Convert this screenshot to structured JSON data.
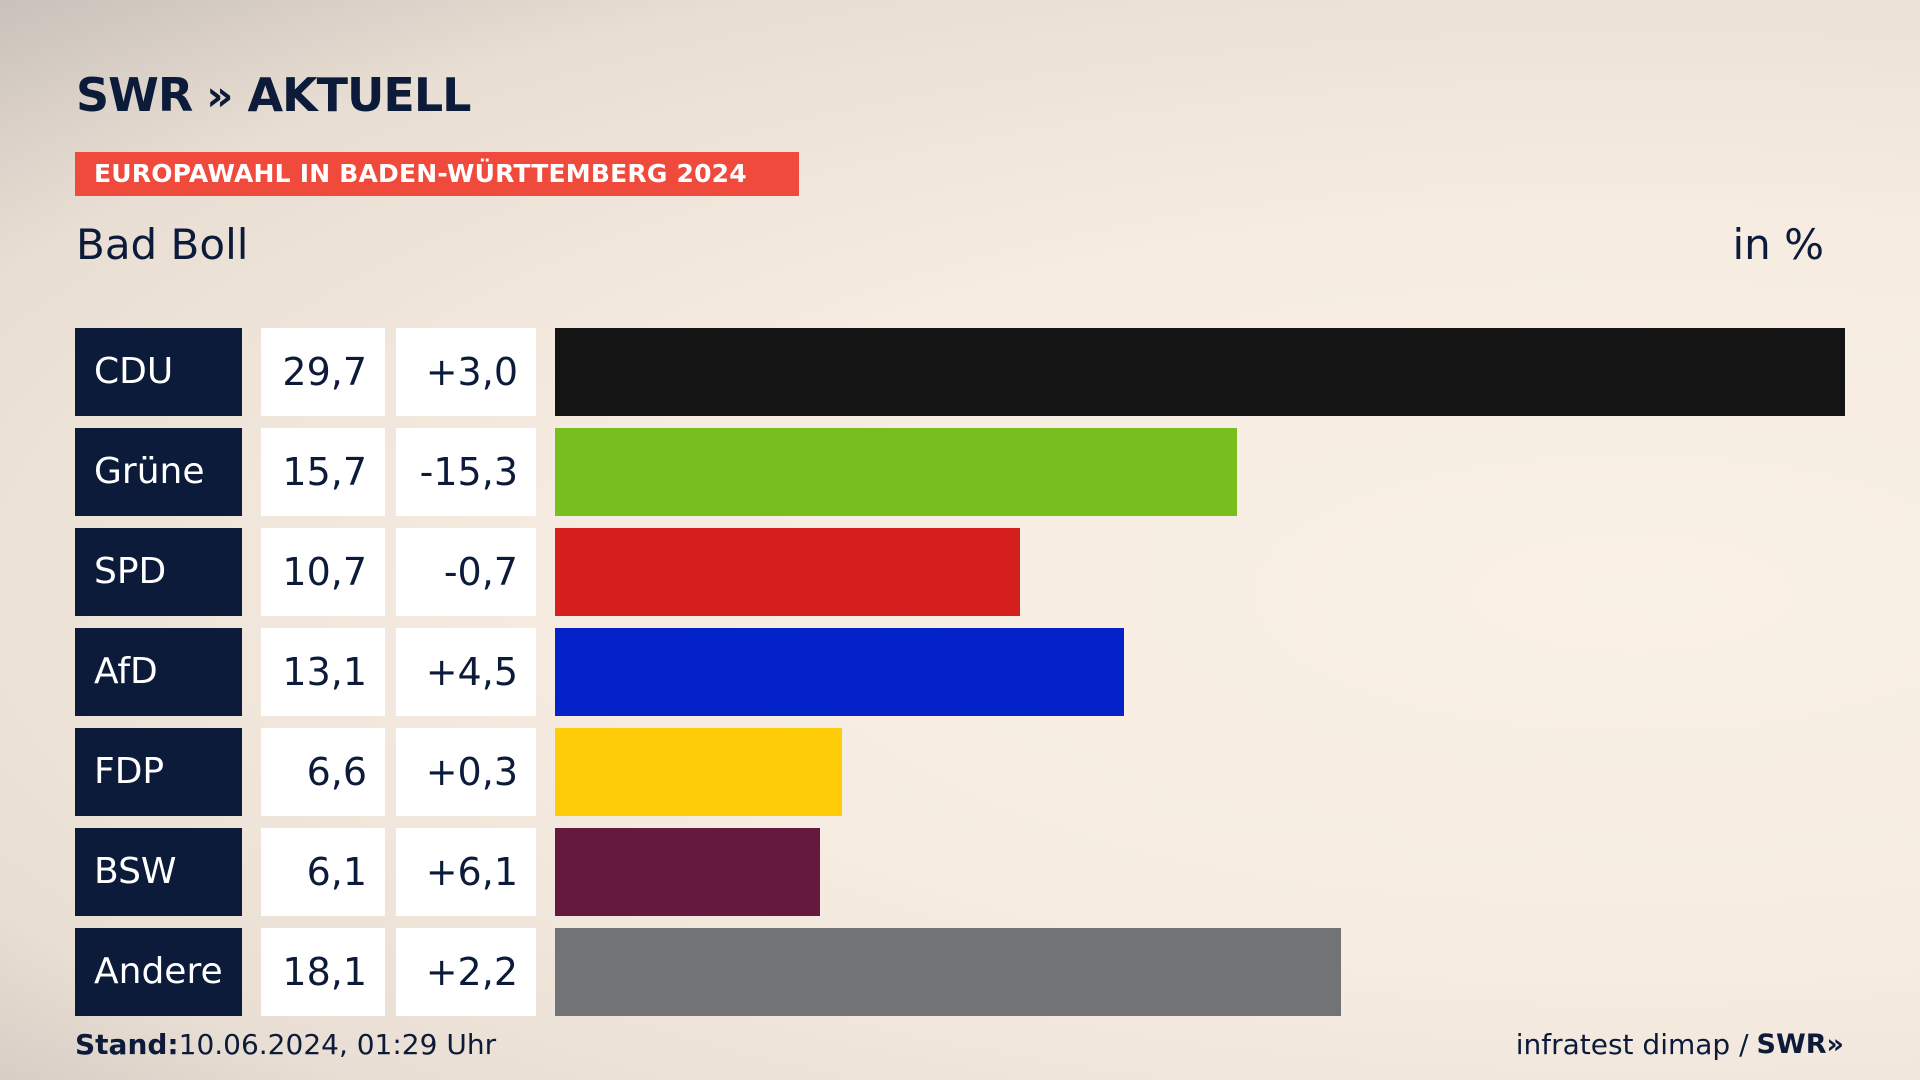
{
  "header": {
    "logo_main": "SWR",
    "logo_chevrons": "»",
    "logo_sub": "AKTUELL",
    "banner": "EUROPAWAHL IN BADEN-WÜRTTEMBERG 2024",
    "location": "Bad Boll",
    "unit": "in %"
  },
  "chart_data": {
    "type": "bar",
    "orientation": "horizontal",
    "categories": [
      "CDU",
      "Grüne",
      "SPD",
      "AfD",
      "FDP",
      "BSW",
      "Andere"
    ],
    "values": [
      29.7,
      15.7,
      10.7,
      13.1,
      6.6,
      6.1,
      18.1
    ],
    "value_labels": [
      "29,7",
      "15,7",
      "10,7",
      "13,1",
      "6,6",
      "6,1",
      "18,1"
    ],
    "change_labels": [
      "+3,0",
      "-15,3",
      "-0,7",
      "+4,5",
      "+0,3",
      "+6,1",
      "+2,2"
    ],
    "changes": [
      3.0,
      -15.3,
      -0.7,
      4.5,
      0.3,
      6.1,
      2.2
    ],
    "colors": [
      "#141414",
      "#78be1e",
      "#d61f1f",
      "#0323c8",
      "#ffcc0a",
      "#641a3e",
      "#727375"
    ],
    "xlim": [
      0,
      29.7
    ]
  },
  "footer": {
    "stand_label": "Stand:",
    "stand_value": "10.06.2024, 01:29 Uhr",
    "source": "infratest dimap /",
    "source_logo": "SWR»"
  }
}
